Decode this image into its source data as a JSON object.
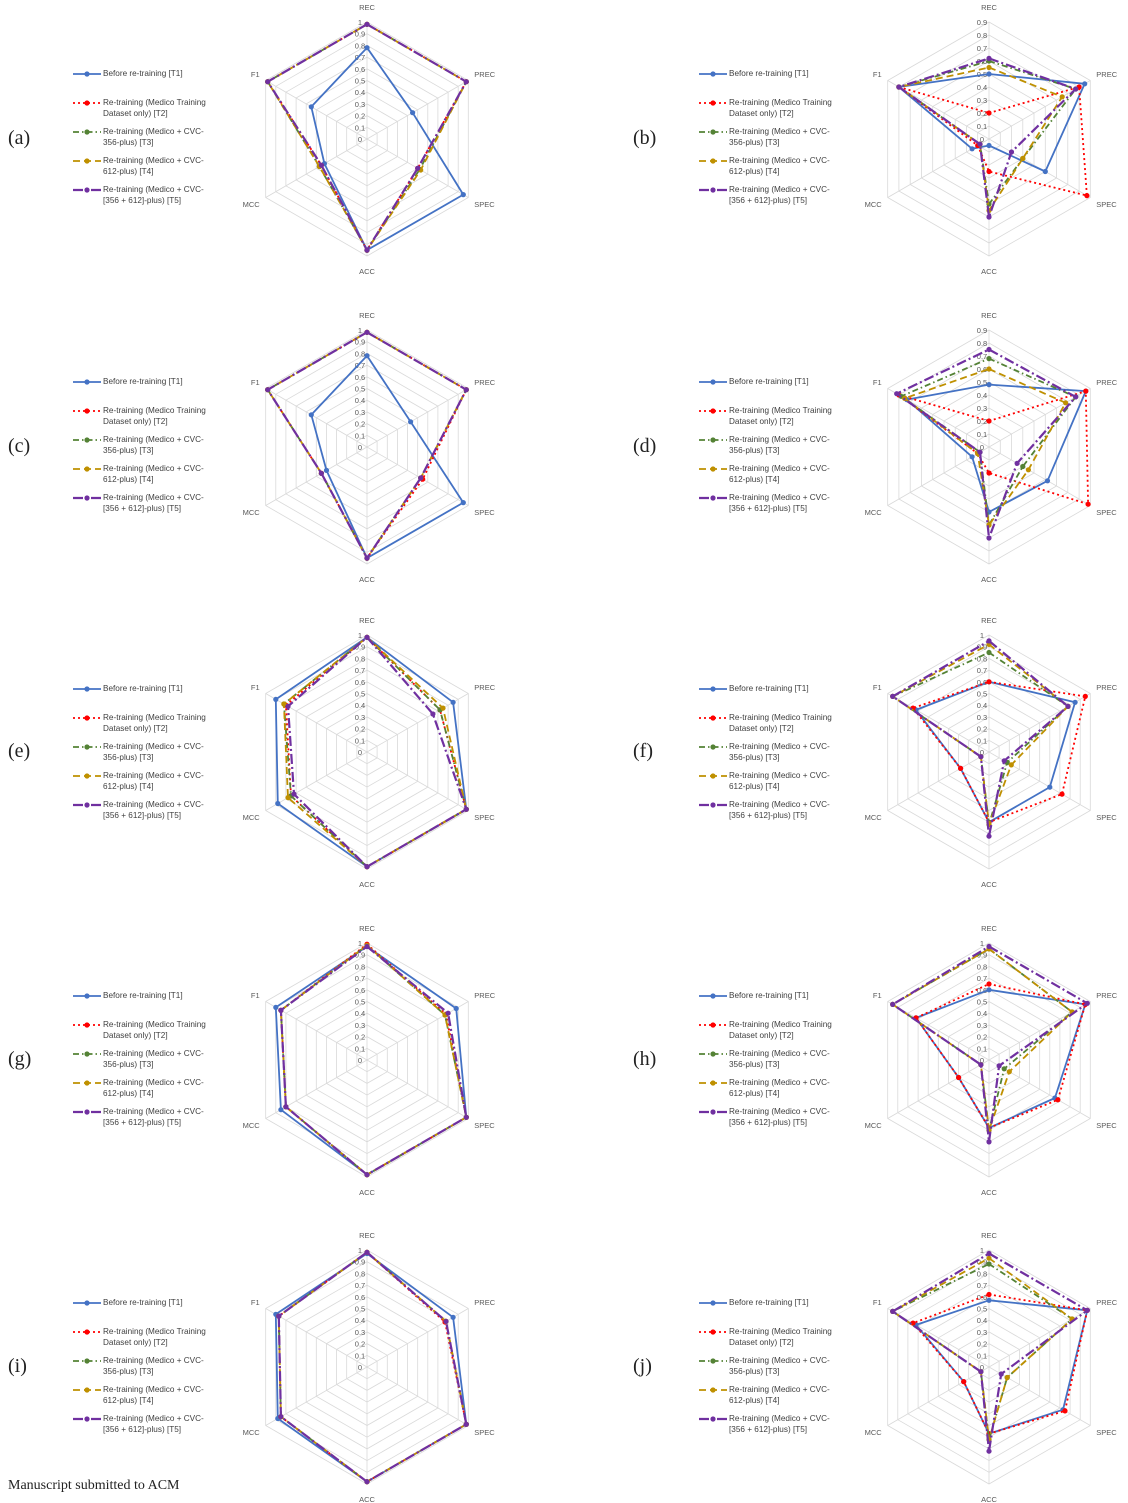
{
  "footer": "Manuscript submitted to ACM",
  "legend": [
    "Before re-training [T1]",
    "Re-training (Medico Training\nDataset only) [T2]",
    "Re-training (Medico + CVC-\n356-plus) [T3]",
    "Re-training (Medico + CVC-\n612-plus) [T4]",
    "Re-training (Medico + CVC-\n[356 + 612]-plus) [T5]"
  ],
  "colors": [
    "#4472C4",
    "#FF0000",
    "#548235",
    "#BF9000",
    "#7030A0"
  ],
  "chart_data": [
    {
      "label": "(a)",
      "type": "radar",
      "axes": [
        "REC",
        "PREC",
        "SPEC",
        "ACC",
        "MCC",
        "F1"
      ],
      "rticks": [
        "0",
        "0.1",
        "0.2",
        "0.3",
        "0.4",
        "0.5",
        "0.6",
        "0.7",
        "0.8",
        "0.9",
        "1"
      ],
      "rmax": 1,
      "series": [
        {
          "name": "Before re-training [T1]",
          "values": [
            0.78,
            0.45,
            0.95,
            0.95,
            0.42,
            0.55
          ]
        },
        {
          "name": "Re-training (Medico Training Dataset only) [T2]",
          "values": [
            0.98,
            0.98,
            0.5,
            0.95,
            0.45,
            0.98
          ]
        },
        {
          "name": "Re-training (Medico + CVC-356-plus) [T3]",
          "values": [
            0.98,
            0.98,
            0.52,
            0.95,
            0.47,
            0.98
          ]
        },
        {
          "name": "Re-training (Medico + CVC-612-plus) [T4]",
          "values": [
            0.98,
            0.98,
            0.53,
            0.95,
            0.47,
            0.98
          ]
        },
        {
          "name": "Re-training (Medico + CVC-[356 + 612]-plus) [T5]",
          "values": [
            0.98,
            0.98,
            0.5,
            0.95,
            0.45,
            0.98
          ]
        }
      ]
    },
    {
      "label": "(b)",
      "type": "radar",
      "axes": [
        "REC",
        "PREC",
        "SPEC",
        "ACC",
        "MCC",
        "F1"
      ],
      "rticks": [
        "0",
        "0.1",
        "0.2",
        "0.3",
        "0.4",
        "0.5",
        "0.6",
        "0.7",
        "0.8",
        "0.9"
      ],
      "rmax": 0.9,
      "series": [
        {
          "name": "Before re-training [T1]",
          "values": [
            0.5,
            0.85,
            0.5,
            0.05,
            0.15,
            0.8
          ]
        },
        {
          "name": "Re-training (Medico Training Dataset only) [T2]",
          "values": [
            0.2,
            0.8,
            0.87,
            0.25,
            0.1,
            0.8
          ]
        },
        {
          "name": "Re-training (Medico + CVC-356-plus) [T3]",
          "values": [
            0.6,
            0.77,
            0.3,
            0.5,
            0.08,
            0.8
          ]
        },
        {
          "name": "Re-training (Medico + CVC-612-plus) [T4]",
          "values": [
            0.55,
            0.65,
            0.3,
            0.55,
            0.08,
            0.8
          ]
        },
        {
          "name": "Re-training (Medico + CVC-[356 + 612]-plus) [T5]",
          "values": [
            0.62,
            0.77,
            0.2,
            0.6,
            0.08,
            0.8
          ]
        }
      ]
    },
    {
      "label": "(c)",
      "type": "radar",
      "axes": [
        "REC",
        "PREC",
        "SPEC",
        "ACC",
        "MCC",
        "F1"
      ],
      "rticks": [
        "0",
        "0.1",
        "0.2",
        "0.3",
        "0.4",
        "0.5",
        "0.6",
        "0.7",
        "0.8",
        "0.9",
        "1"
      ],
      "rmax": 1,
      "series": [
        {
          "name": "Before re-training [T1]",
          "values": [
            0.78,
            0.43,
            0.95,
            0.95,
            0.4,
            0.55
          ]
        },
        {
          "name": "Re-training (Medico Training Dataset only) [T2]",
          "values": [
            0.98,
            0.98,
            0.55,
            0.95,
            0.45,
            0.98
          ]
        },
        {
          "name": "Re-training (Medico + CVC-356-plus) [T3]",
          "values": [
            0.98,
            0.98,
            0.53,
            0.95,
            0.45,
            0.98
          ]
        },
        {
          "name": "Re-training (Medico + CVC-612-plus) [T4]",
          "values": [
            0.98,
            0.98,
            0.53,
            0.95,
            0.45,
            0.98
          ]
        },
        {
          "name": "Re-training (Medico + CVC-[356 + 612]-plus) [T5]",
          "values": [
            0.98,
            0.98,
            0.53,
            0.95,
            0.45,
            0.98
          ]
        }
      ]
    },
    {
      "label": "(d)",
      "type": "radar",
      "axes": [
        "REC",
        "PREC",
        "SPEC",
        "ACC",
        "MCC",
        "F1"
      ],
      "rticks": [
        "0",
        "0.1",
        "0.2",
        "0.3",
        "0.4",
        "0.5",
        "0.6",
        "0.7",
        "0.8",
        "0.9"
      ],
      "rmax": 0.9,
      "series": [
        {
          "name": "Before re-training [T1]",
          "values": [
            0.48,
            0.86,
            0.52,
            0.5,
            0.15,
            0.73
          ]
        },
        {
          "name": "Re-training (Medico Training Dataset only) [T2]",
          "values": [
            0.2,
            0.86,
            0.88,
            0.2,
            0.1,
            0.8
          ]
        },
        {
          "name": "Re-training (Medico + CVC-356-plus) [T3]",
          "values": [
            0.68,
            0.77,
            0.3,
            0.6,
            0.08,
            0.78
          ]
        },
        {
          "name": "Re-training (Medico + CVC-612-plus) [T4]",
          "values": [
            0.6,
            0.68,
            0.35,
            0.6,
            0.1,
            0.75
          ]
        },
        {
          "name": "Re-training (Medico + CVC-[356 + 612]-plus) [T5]",
          "values": [
            0.75,
            0.77,
            0.25,
            0.7,
            0.08,
            0.82
          ]
        }
      ]
    },
    {
      "label": "(e)",
      "type": "radar",
      "axes": [
        "REC",
        "PREC",
        "SPEC",
        "ACC",
        "MCC",
        "F1"
      ],
      "rticks": [
        "0",
        "0.1",
        "0.2",
        "0.3",
        "0.4",
        "0.5",
        "0.6",
        "0.7",
        "0.8",
        "0.9",
        "1"
      ],
      "rmax": 1,
      "series": [
        {
          "name": "Before re-training [T1]",
          "values": [
            0.98,
            0.85,
            0.98,
            0.98,
            0.88,
            0.9
          ]
        },
        {
          "name": "Re-training (Medico Training Dataset only) [T2]",
          "values": [
            0.98,
            0.72,
            0.98,
            0.98,
            0.75,
            0.8
          ]
        },
        {
          "name": "Re-training (Medico + CVC-356-plus) [T3]",
          "values": [
            0.98,
            0.72,
            0.98,
            0.98,
            0.75,
            0.82
          ]
        },
        {
          "name": "Re-training (Medico + CVC-612-plus) [T4]",
          "values": [
            0.98,
            0.75,
            0.98,
            0.98,
            0.78,
            0.82
          ]
        },
        {
          "name": "Re-training (Medico + CVC-[356 + 612]-plus) [T5]",
          "values": [
            0.98,
            0.65,
            0.98,
            0.98,
            0.72,
            0.78
          ]
        }
      ]
    },
    {
      "label": "(f)",
      "type": "radar",
      "axes": [
        "REC",
        "PREC",
        "SPEC",
        "ACC",
        "MCC",
        "F1"
      ],
      "rticks": [
        "0",
        "0.1",
        "0.2",
        "0.3",
        "0.4",
        "0.5",
        "0.6",
        "0.7",
        "0.8",
        "0.9",
        "1"
      ],
      "rmax": 1,
      "series": [
        {
          "name": "Before re-training [T1]",
          "values": [
            0.6,
            0.85,
            0.6,
            0.6,
            0.28,
            0.72
          ]
        },
        {
          "name": "Re-training (Medico Training Dataset only) [T2]",
          "values": [
            0.6,
            0.95,
            0.72,
            0.6,
            0.28,
            0.75
          ]
        },
        {
          "name": "Re-training (Medico + CVC-356-plus) [T3]",
          "values": [
            0.85,
            0.78,
            0.18,
            0.62,
            0.08,
            0.95
          ]
        },
        {
          "name": "Re-training (Medico + CVC-612-plus) [T4]",
          "values": [
            0.92,
            0.78,
            0.22,
            0.62,
            0.08,
            0.95
          ]
        },
        {
          "name": "Re-training (Medico + CVC-[356 + 612]-plus) [T5]",
          "values": [
            0.95,
            0.78,
            0.15,
            0.72,
            0.08,
            0.95
          ]
        }
      ]
    },
    {
      "label": "(g)",
      "type": "radar",
      "axes": [
        "REC",
        "PREC",
        "SPEC",
        "ACC",
        "MCC",
        "F1"
      ],
      "rticks": [
        "0",
        "0.1",
        "0.2",
        "0.3",
        "0.4",
        "0.5",
        "0.6",
        "0.7",
        "0.8",
        "0.9",
        "1"
      ],
      "rmax": 1,
      "series": [
        {
          "name": "Before re-training [T1]",
          "values": [
            0.97,
            0.88,
            0.98,
            0.98,
            0.85,
            0.9
          ]
        },
        {
          "name": "Re-training (Medico Training Dataset only) [T2]",
          "values": [
            0.99,
            0.78,
            0.98,
            0.98,
            0.8,
            0.85
          ]
        },
        {
          "name": "Re-training (Medico + CVC-356-plus) [T3]",
          "values": [
            0.98,
            0.77,
            0.98,
            0.98,
            0.8,
            0.85
          ]
        },
        {
          "name": "Re-training (Medico + CVC-612-plus) [T4]",
          "values": [
            0.98,
            0.77,
            0.98,
            0.98,
            0.8,
            0.85
          ]
        },
        {
          "name": "Re-training (Medico + CVC-[356 + 612]-plus) [T5]",
          "values": [
            0.97,
            0.8,
            0.98,
            0.98,
            0.8,
            0.85
          ]
        }
      ]
    },
    {
      "label": "(h)",
      "type": "radar",
      "axes": [
        "REC",
        "PREC",
        "SPEC",
        "ACC",
        "MCC",
        "F1"
      ],
      "rticks": [
        "0",
        "0.1",
        "0.2",
        "0.3",
        "0.4",
        "0.5",
        "0.6",
        "0.7",
        "0.8",
        "0.9",
        "1"
      ],
      "rmax": 1,
      "series": [
        {
          "name": "Before re-training [T1]",
          "values": [
            0.6,
            0.95,
            0.65,
            0.58,
            0.3,
            0.72
          ]
        },
        {
          "name": "Re-training (Medico Training Dataset only) [T2]",
          "values": [
            0.65,
            0.95,
            0.68,
            0.58,
            0.3,
            0.72
          ]
        },
        {
          "name": "Re-training (Medico + CVC-356-plus) [T3]",
          "values": [
            0.95,
            0.82,
            0.15,
            0.6,
            0.08,
            0.95
          ]
        },
        {
          "name": "Re-training (Medico + CVC-612-plus) [T4]",
          "values": [
            0.95,
            0.82,
            0.2,
            0.6,
            0.08,
            0.95
          ]
        },
        {
          "name": "Re-training (Medico + CVC-[356 + 612]-plus) [T5]",
          "values": [
            0.97,
            0.97,
            0.1,
            0.7,
            0.08,
            0.95
          ]
        }
      ]
    },
    {
      "label": "(i)",
      "type": "radar",
      "axes": [
        "REC",
        "PREC",
        "SPEC",
        "ACC",
        "MCC",
        "F1"
      ],
      "rticks": [
        "0",
        "0.1",
        "0.2",
        "0.3",
        "0.4",
        "0.5",
        "0.6",
        "0.7",
        "0.8",
        "0.9",
        "1"
      ],
      "rmax": 1,
      "series": [
        {
          "name": "Before re-training [T1]",
          "values": [
            0.97,
            0.85,
            0.98,
            0.98,
            0.88,
            0.9
          ]
        },
        {
          "name": "Re-training (Medico Training Dataset only) [T2]",
          "values": [
            0.98,
            0.77,
            0.98,
            0.98,
            0.85,
            0.87
          ]
        },
        {
          "name": "Re-training (Medico + CVC-356-plus) [T3]",
          "values": [
            0.98,
            0.78,
            0.98,
            0.98,
            0.85,
            0.87
          ]
        },
        {
          "name": "Re-training (Medico + CVC-612-plus) [T4]",
          "values": [
            0.98,
            0.78,
            0.98,
            0.98,
            0.85,
            0.87
          ]
        },
        {
          "name": "Re-training (Medico + CVC-[356 + 612]-plus) [T5]",
          "values": [
            0.98,
            0.78,
            0.98,
            0.98,
            0.85,
            0.87
          ]
        }
      ]
    },
    {
      "label": "(j)",
      "type": "radar",
      "axes": [
        "REC",
        "PREC",
        "SPEC",
        "ACC",
        "MCC",
        "F1"
      ],
      "rticks": [
        "0",
        "0.1",
        "0.2",
        "0.3",
        "0.4",
        "0.5",
        "0.6",
        "0.7",
        "0.8",
        "0.9",
        "1"
      ],
      "rmax": 1,
      "series": [
        {
          "name": "Before re-training [T1]",
          "values": [
            0.57,
            0.97,
            0.73,
            0.57,
            0.25,
            0.72
          ]
        },
        {
          "name": "Re-training (Medico Training Dataset only) [T2]",
          "values": [
            0.62,
            0.97,
            0.75,
            0.57,
            0.25,
            0.75
          ]
        },
        {
          "name": "Re-training (Medico + CVC-356-plus) [T3]",
          "values": [
            0.88,
            0.82,
            0.18,
            0.62,
            0.08,
            0.95
          ]
        },
        {
          "name": "Re-training (Medico + CVC-612-plus) [T4]",
          "values": [
            0.93,
            0.82,
            0.18,
            0.62,
            0.08,
            0.95
          ]
        },
        {
          "name": "Re-training (Medico + CVC-[356 + 612]-plus) [T5]",
          "values": [
            0.97,
            0.97,
            0.12,
            0.72,
            0.08,
            0.95
          ]
        }
      ]
    }
  ]
}
